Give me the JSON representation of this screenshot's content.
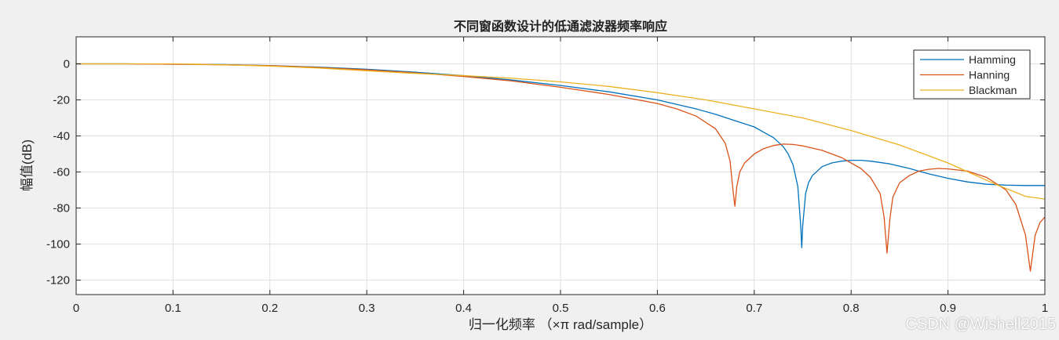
{
  "chart_data": {
    "type": "line",
    "title": "不同窗函数设计的低通滤波器频率响应",
    "xlabel": "归一化频率 （×π  rad/sample）",
    "ylabel": "幅值(dB)",
    "xlim": [
      0,
      1
    ],
    "ylim": [
      -128,
      15
    ],
    "xticks": [
      0,
      0.1,
      0.2,
      0.3,
      0.4,
      0.5,
      0.6,
      0.7,
      0.8,
      0.9,
      1
    ],
    "xtick_labels": [
      "0",
      "0.1",
      "0.2",
      "0.3",
      "0.4",
      "0.5",
      "0.6",
      "0.7",
      "0.8",
      "0.9",
      "1"
    ],
    "yticks": [
      0,
      -20,
      -40,
      -60,
      -80,
      -100,
      -120
    ],
    "ytick_labels": [
      "0",
      "-20",
      "-40",
      "-60",
      "-80",
      "-100",
      "-120"
    ],
    "grid": true,
    "legend_position": "top-right",
    "series": [
      {
        "name": "Hamming",
        "color": "#0072BD",
        "points": [
          [
            0,
            0
          ],
          [
            0.05,
            0
          ],
          [
            0.1,
            -0.2
          ],
          [
            0.15,
            -0.4
          ],
          [
            0.2,
            -0.9
          ],
          [
            0.25,
            -1.8
          ],
          [
            0.3,
            -3
          ],
          [
            0.35,
            -4.6
          ],
          [
            0.4,
            -6.5
          ],
          [
            0.45,
            -9
          ],
          [
            0.5,
            -12
          ],
          [
            0.55,
            -15.5
          ],
          [
            0.6,
            -20
          ],
          [
            0.62,
            -22.5
          ],
          [
            0.64,
            -25
          ],
          [
            0.66,
            -28
          ],
          [
            0.68,
            -31.5
          ],
          [
            0.7,
            -35
          ],
          [
            0.71,
            -38
          ],
          [
            0.72,
            -41
          ],
          [
            0.73,
            -46
          ],
          [
            0.735,
            -50
          ],
          [
            0.74,
            -56
          ],
          [
            0.745,
            -68
          ],
          [
            0.748,
            -90
          ],
          [
            0.749,
            -102
          ],
          [
            0.75,
            -90
          ],
          [
            0.753,
            -72
          ],
          [
            0.756,
            -66
          ],
          [
            0.76,
            -62
          ],
          [
            0.77,
            -57
          ],
          [
            0.78,
            -55
          ],
          [
            0.79,
            -54
          ],
          [
            0.8,
            -53.5
          ],
          [
            0.81,
            -53.5
          ],
          [
            0.82,
            -54
          ],
          [
            0.84,
            -55.5
          ],
          [
            0.86,
            -58
          ],
          [
            0.88,
            -61
          ],
          [
            0.9,
            -63.5
          ],
          [
            0.92,
            -65.5
          ],
          [
            0.94,
            -66.8
          ],
          [
            0.96,
            -67.3
          ],
          [
            0.98,
            -67.5
          ],
          [
            1,
            -67.5
          ]
        ]
      },
      {
        "name": "Hanning",
        "color": "#D95319",
        "points": [
          [
            0,
            0
          ],
          [
            0.05,
            0
          ],
          [
            0.1,
            -0.2
          ],
          [
            0.15,
            -0.5
          ],
          [
            0.2,
            -1
          ],
          [
            0.25,
            -2
          ],
          [
            0.3,
            -3.3
          ],
          [
            0.35,
            -5
          ],
          [
            0.4,
            -7
          ],
          [
            0.45,
            -9.5
          ],
          [
            0.5,
            -13
          ],
          [
            0.55,
            -17
          ],
          [
            0.6,
            -22
          ],
          [
            0.62,
            -25
          ],
          [
            0.64,
            -29
          ],
          [
            0.66,
            -36
          ],
          [
            0.67,
            -44
          ],
          [
            0.675,
            -54
          ],
          [
            0.678,
            -70
          ],
          [
            0.68,
            -79
          ],
          [
            0.682,
            -68
          ],
          [
            0.685,
            -60
          ],
          [
            0.69,
            -55
          ],
          [
            0.7,
            -50
          ],
          [
            0.71,
            -47
          ],
          [
            0.72,
            -45.3
          ],
          [
            0.73,
            -44.5
          ],
          [
            0.74,
            -44.7
          ],
          [
            0.75,
            -45.5
          ],
          [
            0.77,
            -48
          ],
          [
            0.79,
            -52
          ],
          [
            0.81,
            -58
          ],
          [
            0.82,
            -63
          ],
          [
            0.83,
            -72
          ],
          [
            0.834,
            -85
          ],
          [
            0.837,
            -105
          ],
          [
            0.84,
            -86
          ],
          [
            0.843,
            -74
          ],
          [
            0.85,
            -66
          ],
          [
            0.86,
            -62
          ],
          [
            0.87,
            -59.5
          ],
          [
            0.88,
            -58.5
          ],
          [
            0.89,
            -58
          ],
          [
            0.9,
            -58.3
          ],
          [
            0.92,
            -59.5
          ],
          [
            0.94,
            -63
          ],
          [
            0.96,
            -70
          ],
          [
            0.97,
            -78
          ],
          [
            0.98,
            -95
          ],
          [
            0.985,
            -115
          ],
          [
            0.99,
            -95
          ],
          [
            0.995,
            -88
          ],
          [
            1,
            -85
          ]
        ]
      },
      {
        "name": "Blackman",
        "color": "#EDB120",
        "points": [
          [
            0,
            0
          ],
          [
            0.05,
            0
          ],
          [
            0.1,
            0
          ],
          [
            0.15,
            -0.5
          ],
          [
            0.2,
            -1.2
          ],
          [
            0.25,
            -2.3
          ],
          [
            0.3,
            -3.8
          ],
          [
            0.35,
            -5.3
          ],
          [
            0.4,
            -6.5
          ],
          [
            0.45,
            -8
          ],
          [
            0.5,
            -10
          ],
          [
            0.55,
            -12.5
          ],
          [
            0.6,
            -16
          ],
          [
            0.65,
            -20
          ],
          [
            0.7,
            -25
          ],
          [
            0.75,
            -30
          ],
          [
            0.8,
            -37
          ],
          [
            0.85,
            -45
          ],
          [
            0.9,
            -55
          ],
          [
            0.95,
            -67
          ],
          [
            0.98,
            -73.5
          ],
          [
            1,
            -75
          ]
        ]
      }
    ]
  },
  "watermark": "CSDN @Wishell2015"
}
